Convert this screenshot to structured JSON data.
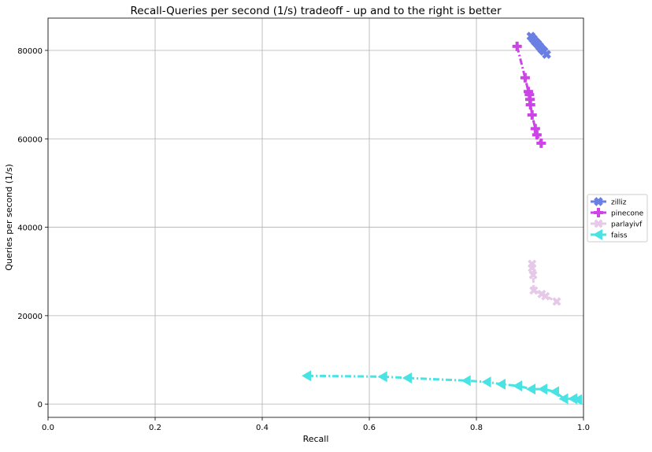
{
  "chart_data": {
    "type": "line",
    "title": "Recall-Queries per second (1/s) tradeoff - up and to the right is better",
    "xlabel": "Recall",
    "ylabel": "Queries per second (1/s)",
    "xlim": [
      0,
      1
    ],
    "ylim": [
      -3000,
      87300
    ],
    "xticks": [
      "0.0",
      "0.2",
      "0.4",
      "0.6",
      "0.8",
      "1.0"
    ],
    "yticks": [
      "0",
      "20000",
      "40000",
      "60000",
      "80000"
    ],
    "grid": true,
    "legend_position": "right",
    "series": [
      {
        "name": "zilliz",
        "color": "#6a7fe3",
        "marker": "X",
        "line": "solid",
        "x": [
          0.902,
          0.906,
          0.91,
          0.914,
          0.918,
          0.922,
          0.926,
          0.931
        ],
        "y": [
          83200,
          82600,
          82000,
          81500,
          80900,
          80300,
          79800,
          79100
        ]
      },
      {
        "name": "pinecone",
        "color": "#cc44e6",
        "marker": "P",
        "line": "dashdot",
        "x": [
          0.876,
          0.891,
          0.897,
          0.899,
          0.9,
          0.901,
          0.904,
          0.91,
          0.913,
          0.921
        ],
        "y": [
          80900,
          73800,
          70700,
          70000,
          68900,
          67700,
          65400,
          62300,
          60900,
          59000
        ]
      },
      {
        "name": "parlayivf",
        "color": "#e6c8e8",
        "marker": "x",
        "line": "dashed",
        "x": [
          0.904,
          0.904,
          0.906,
          0.907,
          0.922,
          0.929,
          0.95
        ],
        "y": [
          31700,
          30800,
          29200,
          25700,
          24900,
          24400,
          23200
        ]
      },
      {
        "name": "faiss",
        "color": "#4ae3e3",
        "marker": "<",
        "line": "dashdot",
        "x": [
          0.484,
          0.626,
          0.672,
          0.782,
          0.82,
          0.847,
          0.878,
          0.903,
          0.925,
          0.947,
          0.964,
          0.981,
          0.99
        ],
        "y": [
          6400,
          6200,
          5900,
          5300,
          5000,
          4500,
          4100,
          3400,
          3400,
          2800,
          1200,
          1200,
          1000
        ]
      }
    ]
  }
}
